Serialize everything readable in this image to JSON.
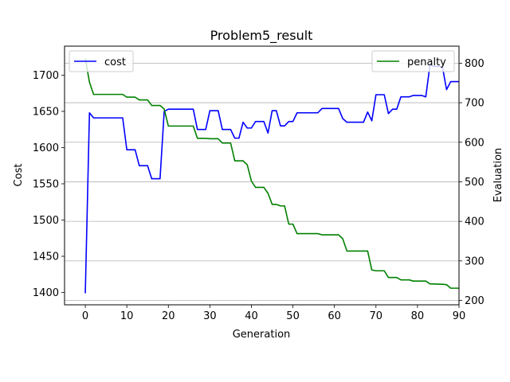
{
  "chart_data": {
    "type": "line",
    "title": "Problem5_result",
    "xlabel": "Generation",
    "ylabel_left": "Cost",
    "ylabel_right": "Evaluation",
    "xlim": [
      -5,
      90
    ],
    "ylim_left": [
      1383,
      1740
    ],
    "ylim_right": [
      189,
      843
    ],
    "x_ticks": [
      0,
      10,
      20,
      30,
      40,
      50,
      60,
      70,
      80,
      90
    ],
    "y_ticks_left": [
      1400,
      1450,
      1500,
      1550,
      1600,
      1650,
      1700
    ],
    "y_ticks_right": [
      200,
      300,
      400,
      500,
      600,
      700,
      800
    ],
    "grid": "horizontal, right axis",
    "legend_left": {
      "placement": "upper-left",
      "label": "cost",
      "color": "#0000ff"
    },
    "legend_right": {
      "placement": "upper-right",
      "label": "penalty",
      "color": "#008000"
    },
    "series": [
      {
        "name": "cost",
        "axis": "left",
        "color": "#0000ff",
        "points": [
          [
            0,
            1399
          ],
          [
            1,
            1648
          ],
          [
            2,
            1641
          ],
          [
            9,
            1641
          ],
          [
            10,
            1597
          ],
          [
            12,
            1597
          ],
          [
            13,
            1575
          ],
          [
            15,
            1575
          ],
          [
            16,
            1557
          ],
          [
            18,
            1557
          ],
          [
            19,
            1650
          ],
          [
            20,
            1653
          ],
          [
            26,
            1653
          ],
          [
            27,
            1625
          ],
          [
            29,
            1625
          ],
          [
            30,
            1651
          ],
          [
            32,
            1651
          ],
          [
            33,
            1625
          ],
          [
            35,
            1625
          ],
          [
            36,
            1613
          ],
          [
            37,
            1613
          ],
          [
            38,
            1635
          ],
          [
            39,
            1627
          ],
          [
            40,
            1627
          ],
          [
            41,
            1636
          ],
          [
            43,
            1636
          ],
          [
            44,
            1620
          ],
          [
            45,
            1651
          ],
          [
            46,
            1651
          ],
          [
            47,
            1630
          ],
          [
            48,
            1630
          ],
          [
            49,
            1636
          ],
          [
            50,
            1636
          ],
          [
            51,
            1648
          ],
          [
            56,
            1648
          ],
          [
            57,
            1654
          ],
          [
            61,
            1654
          ],
          [
            62,
            1640
          ],
          [
            63,
            1635
          ],
          [
            67,
            1635
          ],
          [
            68,
            1649
          ],
          [
            69,
            1637
          ],
          [
            70,
            1673
          ],
          [
            72,
            1673
          ],
          [
            73,
            1647
          ],
          [
            74,
            1653
          ],
          [
            75,
            1653
          ],
          [
            76,
            1670
          ],
          [
            78,
            1670
          ],
          [
            79,
            1672
          ],
          [
            81,
            1672
          ],
          [
            82,
            1670
          ],
          [
            83,
            1714
          ],
          [
            84,
            1712
          ],
          [
            86,
            1712
          ],
          [
            87,
            1680
          ],
          [
            88,
            1691
          ],
          [
            90,
            1691
          ]
        ]
      },
      {
        "name": "penalty",
        "axis": "right",
        "color": "#008000",
        "points": [
          [
            0,
            812
          ],
          [
            1,
            752
          ],
          [
            2,
            721
          ],
          [
            9,
            721
          ],
          [
            10,
            714
          ],
          [
            12,
            714
          ],
          [
            13,
            707
          ],
          [
            15,
            707
          ],
          [
            16,
            693
          ],
          [
            18,
            693
          ],
          [
            19,
            684
          ],
          [
            20,
            641
          ],
          [
            26,
            641
          ],
          [
            27,
            610
          ],
          [
            29,
            610
          ],
          [
            30,
            609
          ],
          [
            32,
            609
          ],
          [
            33,
            598
          ],
          [
            35,
            598
          ],
          [
            36,
            553
          ],
          [
            38,
            553
          ],
          [
            39,
            543
          ],
          [
            40,
            502
          ],
          [
            41,
            486
          ],
          [
            43,
            486
          ],
          [
            44,
            471
          ],
          [
            45,
            443
          ],
          [
            46,
            443
          ],
          [
            47,
            439
          ],
          [
            48,
            439
          ],
          [
            49,
            393
          ],
          [
            50,
            393
          ],
          [
            51,
            369
          ],
          [
            56,
            369
          ],
          [
            57,
            366
          ],
          [
            61,
            366
          ],
          [
            62,
            356
          ],
          [
            63,
            325
          ],
          [
            67,
            325
          ],
          [
            68,
            325
          ],
          [
            69,
            277
          ],
          [
            70,
            275
          ],
          [
            72,
            275
          ],
          [
            73,
            258
          ],
          [
            75,
            258
          ],
          [
            76,
            252
          ],
          [
            78,
            252
          ],
          [
            79,
            249
          ],
          [
            82,
            249
          ],
          [
            83,
            242
          ],
          [
            86,
            241
          ],
          [
            87,
            240
          ],
          [
            88,
            231
          ],
          [
            90,
            231
          ]
        ]
      }
    ]
  }
}
